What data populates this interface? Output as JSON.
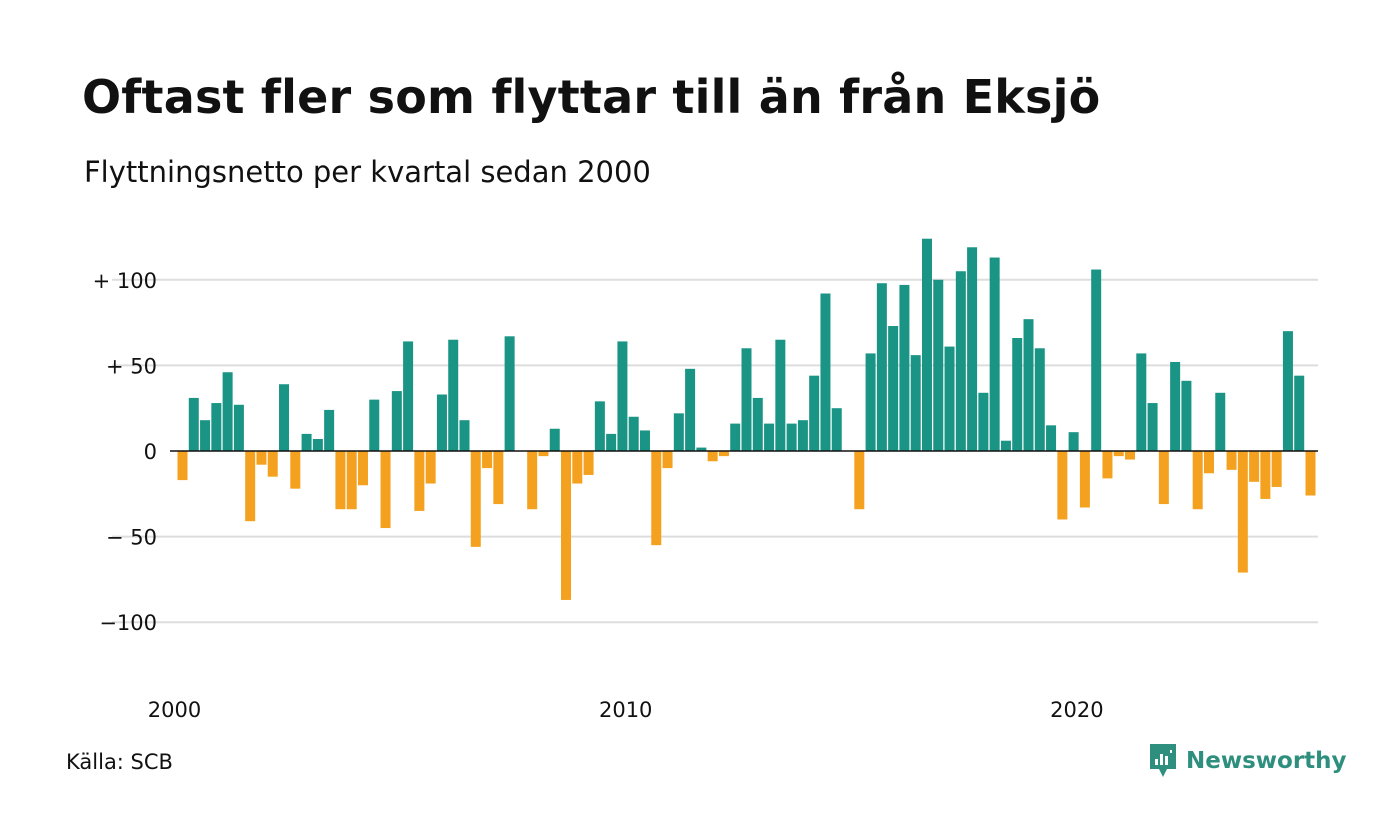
{
  "title": "Oftast fler som flyttar till än från Eksjö",
  "subtitle": "Flyttningsnetto per kvartal sedan 2000",
  "source": "Källa: SCB",
  "brand": {
    "name": "Newsworthy",
    "icon": "newsworthy-logo-icon",
    "color": "#2f8f7e"
  },
  "colors": {
    "positive": "#1a9484",
    "negative": "#f4a11f",
    "grid": "#dddddd",
    "zero": "#111111"
  },
  "chart_data": {
    "type": "bar",
    "title": "Oftast fler som flyttar till än från Eksjö",
    "subtitle": "Flyttningsnetto per kvartal sedan 2000",
    "xlabel": "",
    "ylabel": "",
    "ylim": [
      -115,
      125
    ],
    "yticks": [
      {
        "value": 100,
        "label": "+ 100"
      },
      {
        "value": 50,
        "label": "+  50"
      },
      {
        "value": 0,
        "label": "0"
      },
      {
        "value": -50,
        "label": "− 50"
      },
      {
        "value": -100,
        "label": "−100"
      }
    ],
    "xticks": [
      {
        "index": 0,
        "label": "2000"
      },
      {
        "index": 40,
        "label": "2010"
      },
      {
        "index": 80,
        "label": "2020"
      }
    ],
    "grid": true,
    "legend": "none",
    "start": "2000-Q1",
    "frequency": "quarter",
    "values": [
      -17,
      31,
      18,
      28,
      46,
      27,
      -41,
      -8,
      -15,
      39,
      -22,
      10,
      7,
      24,
      -34,
      -34,
      -20,
      30,
      -45,
      35,
      64,
      -35,
      -19,
      33,
      65,
      18,
      -56,
      -10,
      -31,
      67,
      0,
      -34,
      -3,
      13,
      -87,
      -19,
      -14,
      29,
      10,
      64,
      20,
      12,
      -55,
      -10,
      22,
      48,
      2,
      -6,
      -3,
      16,
      60,
      31,
      16,
      65,
      16,
      18,
      44,
      92,
      25,
      0,
      -34,
      57,
      98,
      73,
      97,
      56,
      124,
      100,
      61,
      105,
      119,
      34,
      113,
      6,
      66,
      77,
      60,
      15,
      -40,
      11,
      -33,
      106,
      -16,
      -3,
      -5,
      57,
      28,
      -31,
      52,
      41,
      -34,
      -13,
      34,
      -11,
      -71,
      -18,
      -28,
      -21,
      70,
      44,
      -26
    ]
  }
}
